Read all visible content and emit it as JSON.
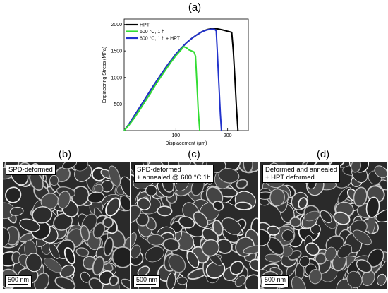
{
  "panels": {
    "a": "(a)",
    "b": "(b)",
    "c": "(c)",
    "d": "(d)"
  },
  "chart_data": {
    "type": "line",
    "xlabel": "Displacement (μm)",
    "ylabel": "Engineering Stress (MPa)",
    "xlim": [
      0,
      240
    ],
    "ylim": [
      0,
      2100
    ],
    "x_ticks": [
      100,
      200
    ],
    "y_ticks": [
      500,
      1000,
      1500,
      2000
    ],
    "grid": false,
    "legend_position": "top-left",
    "series": [
      {
        "name": "HPT",
        "color": "#000000",
        "x": [
          0,
          10,
          25,
          40,
          55,
          70,
          85,
          100,
          110,
          120,
          130,
          140,
          150,
          160,
          170,
          180,
          190,
          200,
          208,
          211,
          214,
          217,
          220
        ],
        "y": [
          0,
          130,
          360,
          590,
          820,
          1040,
          1250,
          1440,
          1550,
          1650,
          1730,
          1800,
          1860,
          1900,
          1920,
          1915,
          1895,
          1870,
          1850,
          1500,
          1000,
          450,
          0
        ]
      },
      {
        "name": "600 °C, 1 h",
        "color": "#33dd33",
        "x": [
          0,
          10,
          20,
          30,
          40,
          50,
          60,
          70,
          80,
          90,
          100,
          110,
          115,
          120,
          123,
          125,
          130,
          135,
          138,
          140,
          143,
          146
        ],
        "y": [
          0,
          110,
          240,
          390,
          540,
          690,
          850,
          1000,
          1140,
          1280,
          1410,
          1520,
          1580,
          1560,
          1540,
          1520,
          1500,
          1480,
          1400,
          1000,
          400,
          0
        ]
      },
      {
        "name": "600 °C, 1 h + HPT",
        "color": "#2233cc",
        "x": [
          0,
          10,
          25,
          40,
          55,
          70,
          85,
          100,
          110,
          120,
          130,
          140,
          150,
          160,
          170,
          175,
          178,
          180,
          183,
          186,
          188
        ],
        "y": [
          0,
          130,
          360,
          590,
          820,
          1040,
          1250,
          1440,
          1550,
          1650,
          1730,
          1800,
          1860,
          1895,
          1910,
          1905,
          1880,
          1500,
          900,
          300,
          0
        ]
      }
    ]
  },
  "micrographs": [
    {
      "id": "b",
      "label": "SPD-deformed",
      "scale": "500 nm"
    },
    {
      "id": "c",
      "label": "SPD-deformed\n+ annealed @ 600 °C 1h",
      "scale": "500 nm"
    },
    {
      "id": "d",
      "label": "Deformed and annealed\n+ HPT deformed",
      "scale": "500 nm"
    }
  ]
}
